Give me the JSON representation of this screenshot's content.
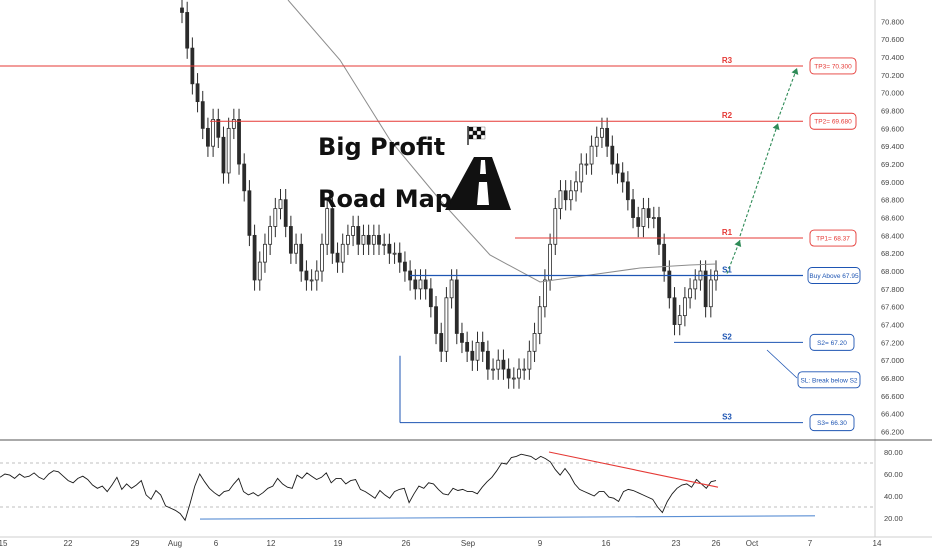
{
  "heading": {
    "line1": "Big Profit",
    "line2": "Road Map"
  },
  "icons": {
    "road": "road-icon",
    "flag": "checkered-flag-icon"
  },
  "colors": {
    "resistance": "#e53935",
    "support": "#1e55b3",
    "target_arrow": "#2e8b57",
    "candle": "#2b2b2b",
    "moving_average": "#8c8c8c",
    "rsi_line": "#1a1a1a",
    "rsi_down_trendline": "#e53935",
    "rsi_up_trendline": "#5b8fd4"
  },
  "chart_data": {
    "type": "candlestick",
    "price_axis": {
      "ylim": [
        66.15,
        70.95
      ],
      "ticks": [
        "70.800",
        "70.600",
        "70.400",
        "70.200",
        "70.000",
        "69.800",
        "69.600",
        "69.400",
        "69.200",
        "69.000",
        "68.800",
        "68.600",
        "68.400",
        "68.200",
        "68.000",
        "67.800",
        "67.600",
        "67.400",
        "67.200",
        "67.000",
        "66.800",
        "66.600",
        "66.400",
        "66.200"
      ]
    },
    "date_axis": {
      "labels": [
        "15",
        "22",
        "29",
        "Aug",
        "6",
        "12",
        "19",
        "26",
        "Sep",
        "9",
        "16",
        "23",
        "26",
        "Oct",
        "7",
        "14"
      ]
    },
    "levels": [
      {
        "label": "R3",
        "value": 70.3,
        "kind": "resistance"
      },
      {
        "label": "R2",
        "value": 69.68,
        "kind": "resistance"
      },
      {
        "label": "R1",
        "value": 68.37,
        "kind": "resistance"
      },
      {
        "label": "S1",
        "value": 67.95,
        "kind": "support"
      },
      {
        "label": "S2",
        "value": 67.2,
        "kind": "support"
      },
      {
        "label": "S3",
        "value": 66.3,
        "kind": "support"
      }
    ],
    "callouts": [
      {
        "text": "TP3= 70.300",
        "kind": "resistance"
      },
      {
        "text": "TP2= 69.680",
        "kind": "resistance"
      },
      {
        "text": "TP1= 68.37",
        "kind": "resistance"
      },
      {
        "text": "Buy Above 67.95",
        "kind": "support"
      },
      {
        "text": "S2= 67.20",
        "kind": "support"
      },
      {
        "text": "SL: Break below S2",
        "kind": "support"
      },
      {
        "text": "S3= 66.30",
        "kind": "support"
      }
    ],
    "targets_path": [
      67.95,
      68.37,
      69.68,
      70.3
    ],
    "close_series": [
      70.9,
      70.5,
      70.1,
      69.9,
      69.6,
      69.4,
      69.7,
      69.5,
      69.1,
      69.6,
      69.7,
      69.2,
      68.9,
      68.4,
      67.9,
      68.1,
      68.3,
      68.5,
      68.7,
      68.8,
      68.5,
      68.2,
      68.3,
      68.0,
      67.9,
      67.9,
      68.0,
      68.3,
      68.7,
      68.2,
      68.1,
      68.3,
      68.4,
      68.5,
      68.3,
      68.4,
      68.3,
      68.4,
      68.3,
      68.3,
      68.2,
      68.2,
      68.1,
      68.0,
      67.9,
      67.8,
      67.9,
      67.8,
      67.6,
      67.3,
      67.1,
      67.7,
      67.9,
      67.3,
      67.2,
      67.1,
      67.0,
      67.2,
      67.1,
      66.9,
      66.9,
      67.0,
      66.9,
      66.8,
      66.8,
      66.9,
      66.9,
      67.1,
      67.3,
      67.6,
      67.9,
      68.3,
      68.7,
      68.9,
      68.8,
      68.9,
      69.0,
      69.2,
      69.2,
      69.4,
      69.5,
      69.6,
      69.4,
      69.2,
      69.1,
      69.0,
      68.8,
      68.6,
      68.5,
      68.7,
      68.6,
      68.6,
      68.3,
      68.0,
      67.7,
      67.4,
      67.5,
      67.7,
      67.8,
      67.9,
      68.0,
      67.6,
      67.9,
      68.0
    ],
    "rsi": {
      "ylim": [
        0,
        100
      ],
      "ticks": [
        "80.00",
        "60.00",
        "40.00",
        "20.00"
      ],
      "dashed_levels": [
        70,
        30
      ],
      "values": [
        57,
        60,
        59,
        56,
        60,
        57,
        58,
        61,
        57,
        55,
        60,
        63,
        62,
        58,
        54,
        52,
        56,
        58,
        55,
        50,
        47,
        49,
        44,
        50,
        57,
        46,
        51,
        47,
        50,
        54,
        41,
        37,
        45,
        41,
        31,
        29,
        27,
        24,
        18,
        33,
        49,
        60,
        53,
        47,
        43,
        40,
        44,
        45,
        51,
        56,
        44,
        41,
        43,
        40,
        43,
        47,
        49,
        56,
        51,
        48,
        47,
        59,
        56,
        61,
        58,
        55,
        57,
        61,
        52,
        56,
        56,
        51,
        54,
        55,
        46,
        44,
        41,
        38,
        45,
        41,
        38,
        44,
        46,
        47,
        34,
        42,
        49,
        47,
        52,
        51,
        46,
        42,
        41,
        47,
        45,
        46,
        44,
        44,
        42,
        48,
        53,
        57,
        63,
        70,
        69,
        75,
        76,
        78,
        77,
        76,
        73,
        76,
        74,
        71,
        64,
        59,
        65,
        59,
        51,
        46,
        44,
        42,
        40,
        44,
        44,
        39,
        38,
        35,
        44,
        46,
        45,
        43,
        41,
        39,
        37,
        30,
        25,
        35,
        42,
        47,
        50,
        51,
        48,
        55,
        51,
        47,
        53,
        54
      ]
    }
  }
}
